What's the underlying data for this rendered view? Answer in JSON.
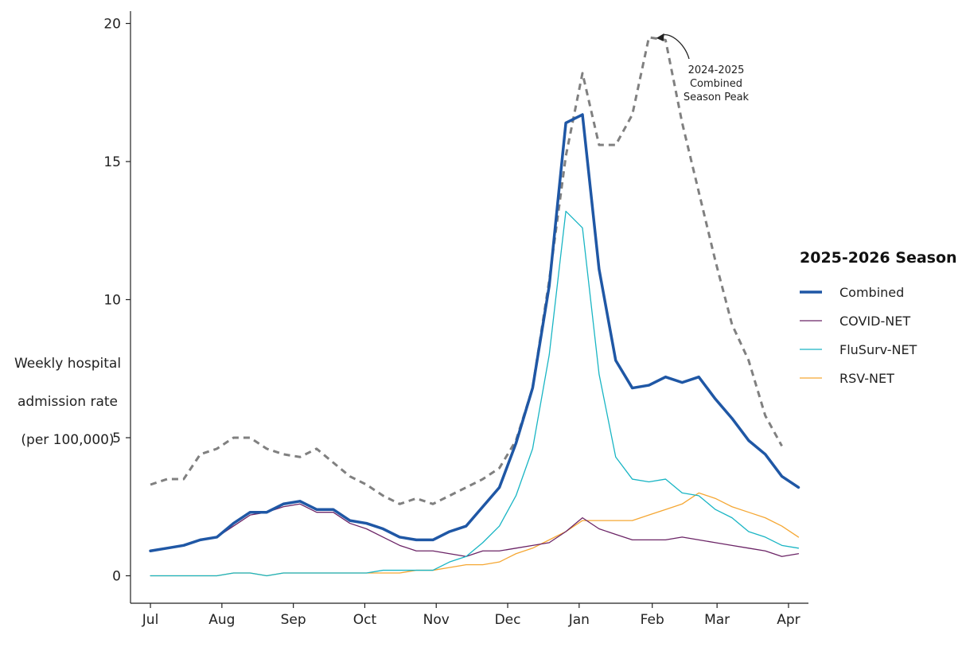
{
  "chart_data": {
    "type": "line",
    "ylabel_lines": [
      "Weekly hospital",
      "admission rate",
      "(per 100,000)"
    ],
    "ylim": [
      0,
      20
    ],
    "yticks": [
      0,
      5,
      10,
      15,
      20
    ],
    "x_ticks": [
      "Jul",
      "Aug",
      "Sep",
      "Oct",
      "Nov",
      "Dec",
      "Jan",
      "Feb",
      "Mar",
      "Apr"
    ],
    "x_tick_weeks": [
      0,
      4.3,
      8.6,
      12.9,
      17.2,
      21.5,
      25.8,
      30.2,
      34.1,
      38.4
    ],
    "x_range_weeks": [
      -1.2,
      39.6
    ],
    "legend": {
      "title": "2025-2026 Season",
      "position": "right"
    },
    "series": [
      {
        "name": "Combined",
        "color": "#1f57a5",
        "style": "solid-thick",
        "values": [
          0.9,
          1.0,
          1.1,
          1.3,
          1.4,
          1.9,
          2.3,
          2.3,
          2.6,
          2.7,
          2.4,
          2.4,
          2.0,
          1.9,
          1.7,
          1.4,
          1.3,
          1.3,
          1.6,
          1.8,
          2.5,
          3.2,
          4.8,
          6.8,
          10.5,
          16.4,
          16.7,
          11.1,
          7.8,
          6.8,
          6.9,
          7.2,
          7.0,
          7.2,
          6.4,
          5.7,
          4.9,
          4.4,
          3.6,
          3.2
        ]
      },
      {
        "name": "COVID-NET",
        "color": "#6b2466",
        "style": "solid-thin",
        "values": [
          0.9,
          1.0,
          1.1,
          1.3,
          1.4,
          1.8,
          2.2,
          2.3,
          2.5,
          2.6,
          2.3,
          2.3,
          1.9,
          1.7,
          1.4,
          1.1,
          0.9,
          0.9,
          0.8,
          0.7,
          0.9,
          0.9,
          1.0,
          1.1,
          1.2,
          1.6,
          2.1,
          1.7,
          1.5,
          1.3,
          1.3,
          1.3,
          1.4,
          1.3,
          1.2,
          1.1,
          1.0,
          0.9,
          0.7,
          0.8
        ]
      },
      {
        "name": "FluSurv-NET",
        "color": "#19b5c4",
        "style": "solid-thin",
        "values": [
          0.0,
          0.0,
          0.0,
          0.0,
          0.0,
          0.1,
          0.1,
          0.0,
          0.1,
          0.1,
          0.1,
          0.1,
          0.1,
          0.1,
          0.2,
          0.2,
          0.2,
          0.2,
          0.5,
          0.7,
          1.2,
          1.8,
          2.9,
          4.6,
          8.0,
          13.2,
          12.6,
          7.3,
          4.3,
          3.5,
          3.4,
          3.5,
          3.0,
          2.9,
          2.4,
          2.1,
          1.6,
          1.4,
          1.1,
          1.0
        ]
      },
      {
        "name": "RSV-NET",
        "color": "#f5a733",
        "style": "solid-thin",
        "values": [
          0.0,
          0.0,
          0.0,
          0.0,
          0.0,
          0.1,
          0.1,
          0.0,
          0.1,
          0.1,
          0.1,
          0.1,
          0.1,
          0.1,
          0.1,
          0.1,
          0.2,
          0.2,
          0.3,
          0.4,
          0.4,
          0.5,
          0.8,
          1.0,
          1.3,
          1.6,
          2.0,
          2.0,
          2.0,
          2.0,
          2.2,
          2.4,
          2.6,
          3.0,
          2.8,
          2.5,
          2.3,
          2.1,
          1.8,
          1.4
        ]
      },
      {
        "name": "2024-2025 Combined",
        "color": "#808080",
        "style": "dashed",
        "legend": false,
        "values": [
          3.3,
          3.5,
          3.5,
          4.4,
          4.6,
          5.0,
          5.0,
          4.6,
          4.4,
          4.3,
          4.6,
          4.1,
          3.6,
          3.3,
          2.9,
          2.6,
          2.8,
          2.6,
          2.9,
          3.2,
          3.5,
          3.9,
          4.9,
          6.8,
          10.7,
          15.2,
          18.2,
          15.6,
          15.6,
          16.7,
          19.5,
          19.4,
          16.4,
          13.9,
          11.4,
          9.1,
          7.8,
          5.8,
          4.7
        ]
      }
    ],
    "annotation": {
      "lines": [
        "2024-2025",
        "Combined",
        "Season Peak"
      ],
      "points_to": {
        "x_week": 30.2,
        "y": 19.5
      }
    }
  }
}
